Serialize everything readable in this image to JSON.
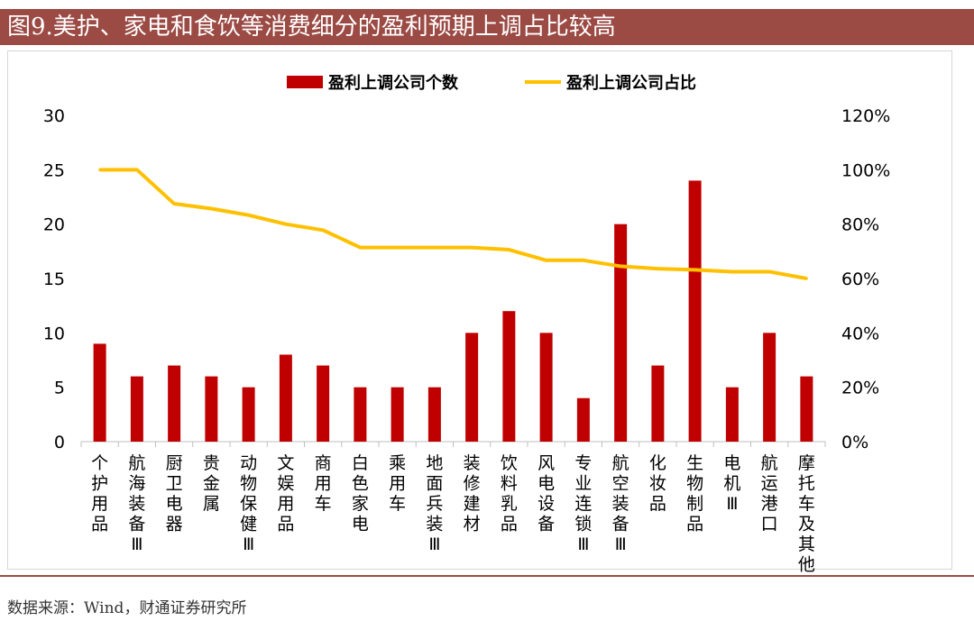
{
  "title": "图9.美护、家电和食饮等消费细分的盈利预期上调占比较高",
  "source": "数据来源：Wind，财通证券研究所",
  "colors": {
    "bar": "#c00000",
    "line": "#ffc000",
    "title_bg": "#9b4a44"
  },
  "chart_data": {
    "type": "bar",
    "categories": [
      "个护用品",
      "航海装备Ⅲ",
      "厨卫电器",
      "贵金属",
      "动物保健Ⅲ",
      "文娱用品",
      "商用车",
      "白色家电",
      "乘用车",
      "地面兵装Ⅲ",
      "装修建材",
      "饮料乳品",
      "风电设备",
      "专业连锁Ⅲ",
      "航空装备Ⅲ",
      "化妆品",
      "生物制品",
      "电机Ⅲ",
      "航运港口",
      "摩托车及其他"
    ],
    "series": [
      {
        "name": "盈利上调公司个数",
        "type": "bar",
        "axis": "left",
        "values": [
          9,
          6,
          7,
          6,
          5,
          8,
          7,
          5,
          5,
          5,
          10,
          12,
          10,
          4,
          20,
          7,
          24,
          5,
          10,
          6
        ]
      },
      {
        "name": "盈利上调公司占比",
        "type": "line",
        "axis": "right",
        "values": [
          100,
          100,
          87.5,
          85.7,
          83.3,
          80,
          77.8,
          71.4,
          71.4,
          71.4,
          71.4,
          70.6,
          66.7,
          66.7,
          64.5,
          63.6,
          63.2,
          62.5,
          62.5,
          60
        ]
      }
    ],
    "y_left": {
      "min": 0,
      "max": 30,
      "ticks": [
        "0",
        "5",
        "10",
        "15",
        "20",
        "25",
        "30"
      ]
    },
    "y_right": {
      "min": 0,
      "max": 120,
      "ticks": [
        "0%",
        "20%",
        "40%",
        "60%",
        "80%",
        "100%",
        "120%"
      ]
    },
    "legend_position": "top-center",
    "grid": false
  }
}
